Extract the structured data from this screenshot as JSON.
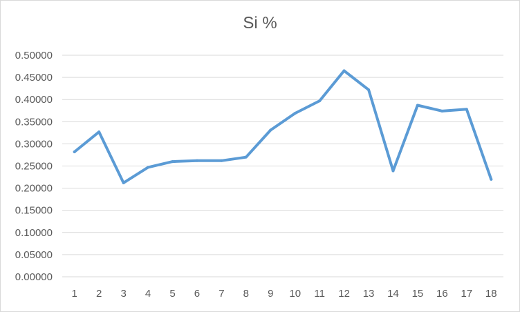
{
  "chart_data": {
    "type": "line",
    "title": "Si %",
    "xlabel": "",
    "ylabel": "",
    "categories": [
      "1",
      "2",
      "3",
      "4",
      "5",
      "6",
      "7",
      "8",
      "9",
      "10",
      "11",
      "12",
      "13",
      "14",
      "15",
      "16",
      "17",
      "18"
    ],
    "series": [
      {
        "values": [
          0.282,
          0.327,
          0.212,
          0.247,
          0.26,
          0.262,
          0.262,
          0.27,
          0.331,
          0.369,
          0.397,
          0.465,
          0.422,
          0.239,
          0.387,
          0.374,
          0.378,
          0.22
        ],
        "color": "#5b9bd5"
      }
    ],
    "ylim": [
      0,
      0.5
    ],
    "yticks": [
      "0.00000",
      "0.05000",
      "0.10000",
      "0.15000",
      "0.20000",
      "0.25000",
      "0.30000",
      "0.35000",
      "0.40000",
      "0.45000",
      "0.50000"
    ],
    "grid": true,
    "legend": "none"
  }
}
